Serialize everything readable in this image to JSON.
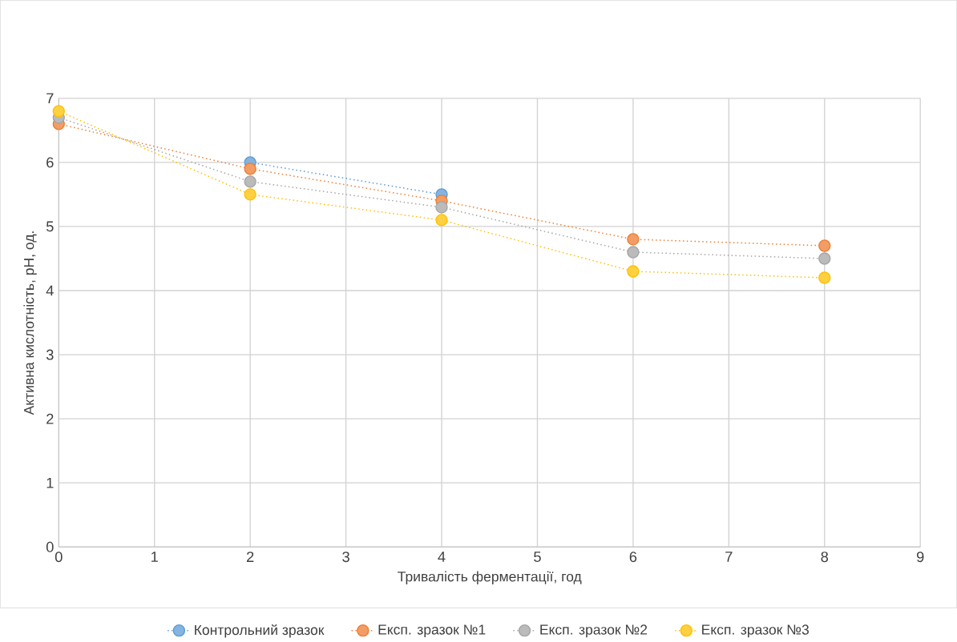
{
  "chart_data": {
    "type": "line",
    "xlabel": "Тривалість ферментації, год",
    "ylabel": "Активна кислотність, pH, од.",
    "x": [
      0,
      2,
      4,
      6,
      8
    ],
    "series": [
      {
        "name": "Контрольний зразок",
        "color": "#5b9bd5",
        "values": [
          null,
          6.0,
          5.5,
          null,
          null
        ]
      },
      {
        "name": "Експ. зразок №1",
        "color": "#ed7d31",
        "values": [
          6.6,
          5.9,
          5.4,
          4.8,
          4.7
        ]
      },
      {
        "name": "Експ. зразок №2",
        "color": "#a5a5a5",
        "values": [
          6.7,
          5.7,
          5.3,
          4.6,
          4.5
        ]
      },
      {
        "name": "Експ. зразок №3",
        "color": "#ffc000",
        "values": [
          6.8,
          5.5,
          5.1,
          4.3,
          4.2
        ]
      }
    ],
    "xlim": [
      0,
      9
    ],
    "xticks": [
      0,
      1,
      2,
      3,
      4,
      5,
      6,
      7,
      8,
      9
    ],
    "ylim": [
      0,
      7
    ],
    "yticks": [
      0,
      1,
      2,
      3,
      4,
      5,
      6,
      7
    ],
    "grid": true,
    "legend": "bottom",
    "marker": "circle",
    "line_style": "dotted"
  }
}
